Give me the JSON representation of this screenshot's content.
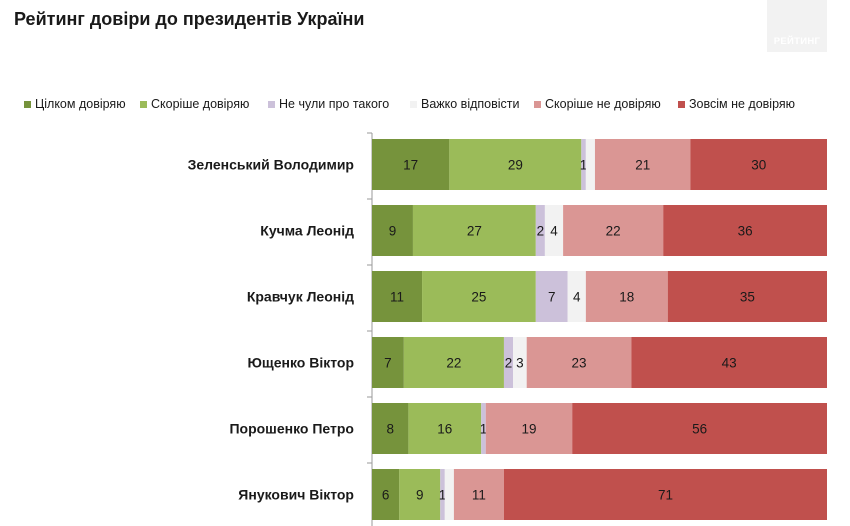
{
  "header": {
    "title": "Рейтинг довіри до президентів України"
  },
  "logo": {
    "text": "РЕЙТИНГ"
  },
  "chart_data": {
    "type": "bar",
    "orientation": "horizontal",
    "stacked": true,
    "title": "Рейтинг довіри до президентів України",
    "legend_position": "top",
    "grid": false,
    "categories": [
      "Зеленський Володимир",
      "Кучма Леонід",
      "Кравчук Леонід",
      "Ющенко Віктор",
      "Порошенко Петро",
      "Янукович Віктор"
    ],
    "series": [
      {
        "name": "Цілком довіряю",
        "color": "#76933c",
        "label_color": "#1a1a1a",
        "values": [
          17,
          9,
          11,
          7,
          8,
          6
        ]
      },
      {
        "name": "Скоріше довіряю",
        "color": "#9bbb59",
        "label_color": "#1a1a1a",
        "values": [
          29,
          27,
          25,
          22,
          16,
          9
        ]
      },
      {
        "name": "Не чули про такого",
        "color": "#ccc1da",
        "label_color": "#1a1a1a",
        "values": [
          1,
          2,
          7,
          2,
          1,
          1
        ]
      },
      {
        "name": "Важко відповісти",
        "color": "#f2f2f2",
        "label_color": "#1a1a1a",
        "values": [
          2,
          4,
          4,
          3,
          0,
          2
        ]
      },
      {
        "name": "Скоріше не довіряю",
        "color": "#da9694",
        "label_color": "#1a1a1a",
        "values": [
          21,
          22,
          18,
          23,
          19,
          11
        ]
      },
      {
        "name": "Зовсім не довіряю",
        "color": "#c0504d",
        "label_color": "#1a1a1a",
        "values": [
          30,
          36,
          35,
          43,
          56,
          71
        ]
      }
    ],
    "hidden_labels": [
      [
        0,
        3
      ],
      [
        4,
        3
      ],
      [
        5,
        3
      ]
    ]
  }
}
